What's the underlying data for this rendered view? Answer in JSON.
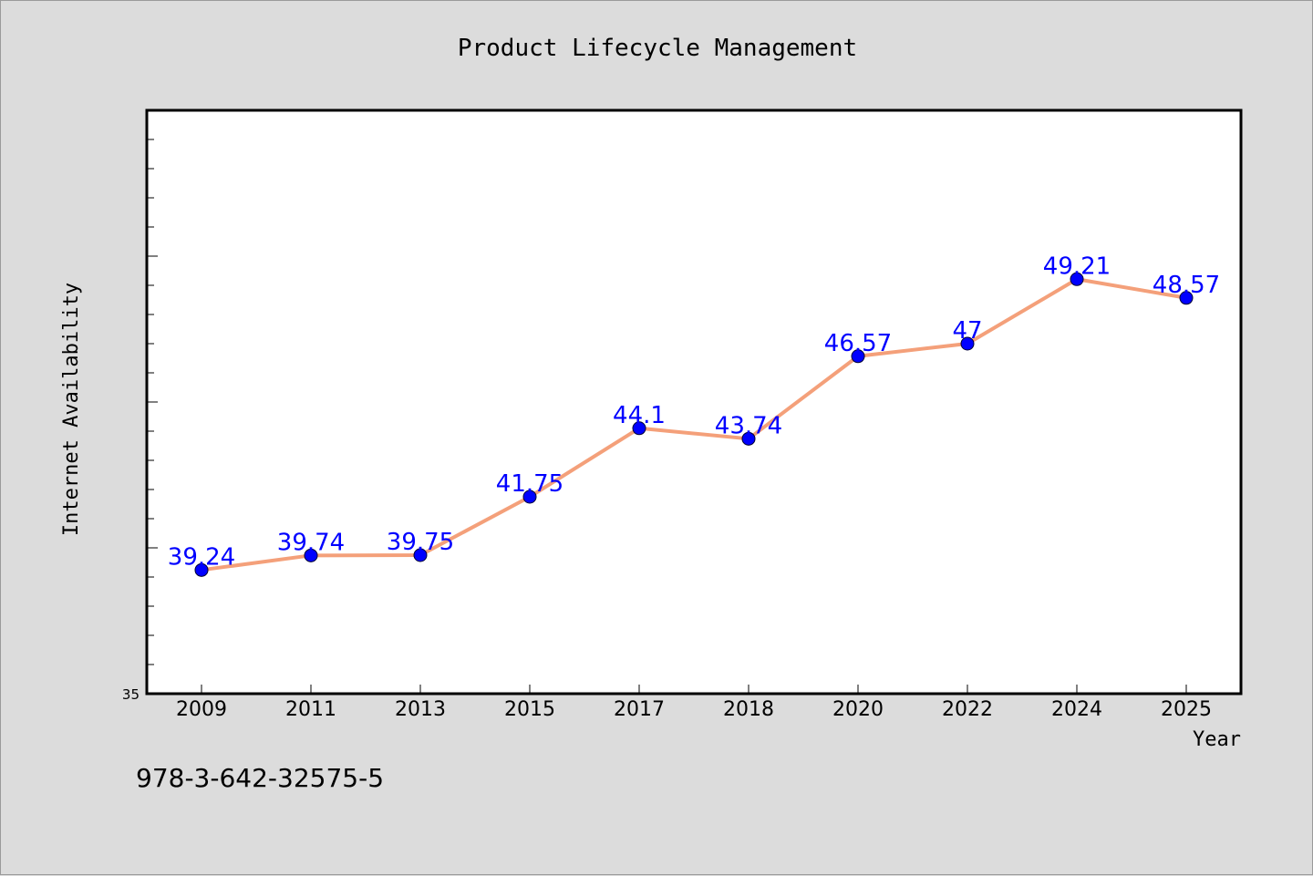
{
  "chart_data": {
    "type": "line",
    "title": "Product Lifecycle Management",
    "xlabel": "Year",
    "ylabel": "Internet Availability",
    "categories": [
      "2009",
      "2011",
      "2013",
      "2015",
      "2017",
      "2018",
      "2020",
      "2022",
      "2024",
      "2025"
    ],
    "series": [
      {
        "values": [
          39.24,
          39.74,
          39.75,
          41.75,
          44.1,
          43.74,
          46.57,
          47,
          49.21,
          48.57
        ],
        "data_labels": [
          "39.24",
          "39.74",
          "39.75",
          "41.75",
          "44.1",
          "43.74",
          "46.57",
          "47",
          "49.21",
          "48.57"
        ],
        "line_color": "#f4a07a",
        "marker_color": "#0000ff"
      }
    ],
    "ylim": [
      35,
      55
    ],
    "y_tick_labels": [
      "35"
    ],
    "grid": false,
    "background_color": "#dcdcdc",
    "plot_background_color": "#ffffff",
    "footnote": "978-3-642-32575-5"
  }
}
